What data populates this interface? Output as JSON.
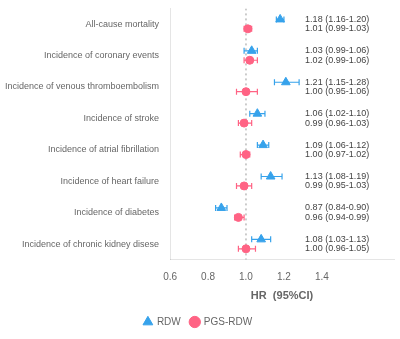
{
  "chart_data": {
    "type": "forest",
    "xlabel": "HR  (95%CI)",
    "categories": [
      "All-cause mortality",
      "Incidence of coronary events",
      "Incidence of venous thromboembolism",
      "Incidence of stroke",
      "Incidence of atrial fibrillation",
      "Incidence of heart failure",
      "Incidence of diabetes",
      "Incidence of chronic kidney disese"
    ],
    "series": [
      {
        "name": "RDW",
        "marker": "triangle",
        "values": [
          1.18,
          1.03,
          1.21,
          1.06,
          1.09,
          1.13,
          0.87,
          1.08
        ],
        "lo": [
          1.16,
          0.99,
          1.15,
          1.02,
          1.06,
          1.08,
          0.84,
          1.03
        ],
        "hi": [
          1.2,
          1.06,
          1.28,
          1.1,
          1.12,
          1.19,
          0.9,
          1.13
        ],
        "value_labels": [
          "1.18 (1.16-1.20)",
          "1.03 (0.99-1.06)",
          "1.21 (1.15-1.28)",
          "1.06 (1.02-1.10)",
          "1.09 (1.06-1.12)",
          "1.13 (1.08-1.19)",
          "0.87 (0.84-0.90)",
          "1.08 (1.03-1.13)"
        ]
      },
      {
        "name": "PGS-RDW",
        "marker": "circle",
        "values": [
          1.01,
          1.02,
          1.0,
          0.99,
          1.0,
          0.99,
          0.96,
          1.0
        ],
        "lo": [
          0.99,
          0.99,
          0.95,
          0.96,
          0.97,
          0.95,
          0.94,
          0.96
        ],
        "hi": [
          1.03,
          1.06,
          1.06,
          1.03,
          1.02,
          1.03,
          0.99,
          1.05
        ],
        "value_labels": [
          "1.01 (0.99-1.03)",
          "1.02 (0.99-1.06)",
          "1.00 (0.95-1.06)",
          "0.99 (0.96-1.03)",
          "1.00 (0.97-1.02)",
          "0.99 (0.95-1.03)",
          "0.96 (0.94-0.99)",
          "1.00 (0.96-1.05)"
        ]
      }
    ],
    "ref_line": 1,
    "xlim": [
      0.6,
      1.78
    ],
    "xticks": [
      0.6,
      0.8,
      {
        "value": 1,
        "label": "1.0"
      },
      1.2,
      1.4
    ],
    "grid": false,
    "legend": "bottom"
  }
}
